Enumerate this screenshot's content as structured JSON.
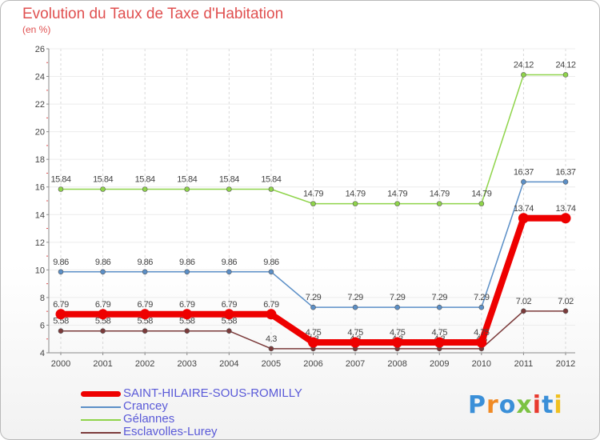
{
  "title": "Evolution du Taux de Taxe d'Habitation",
  "unit_label": "(en %)",
  "logo": {
    "text": "Proxiti",
    "colors": [
      "#3a8fd8",
      "#f08a24",
      "#3a8fd8",
      "#7cc243",
      "#e83a2f",
      "#3a8fd8",
      "#f0c020"
    ]
  },
  "chart_data": {
    "type": "line",
    "title": "Evolution du Taux de Taxe d'Habitation",
    "ylabel": "(en %)",
    "xlabel": "",
    "ylim": [
      4,
      26
    ],
    "yticks": [
      4,
      6,
      8,
      10,
      12,
      14,
      16,
      18,
      20,
      22,
      24,
      26
    ],
    "grid": true,
    "legend_position": "bottom-left",
    "x": [
      "2000",
      "2001",
      "2002",
      "2003",
      "2004",
      "2005",
      "2006",
      "2007",
      "2008",
      "2009",
      "2010",
      "2011",
      "2012"
    ],
    "series": [
      {
        "name": "Esclavolles-Lurey",
        "color": "#7b3a3a",
        "values": [
          5.58,
          5.58,
          5.58,
          5.58,
          5.58,
          4.3,
          4.3,
          4.3,
          4.3,
          4.3,
          4.3,
          7.02,
          7.02
        ],
        "labels": [
          "5.58",
          "5.58",
          "5.58",
          "5.58",
          "5.58",
          "4.3",
          "4.3",
          "4.3",
          "4.3",
          "4.3",
          "4.3",
          "7.02",
          "7.02"
        ]
      },
      {
        "name": "Gélannes",
        "color": "#8fd44a",
        "values": [
          15.84,
          15.84,
          15.84,
          15.84,
          15.84,
          15.84,
          14.79,
          14.79,
          14.79,
          14.79,
          14.79,
          24.12,
          24.12
        ],
        "labels": [
          "15.84",
          "15.84",
          "15.84",
          "15.84",
          "15.84",
          "15.84",
          "14.79",
          "14.79",
          "14.79",
          "14.79",
          "14.79",
          "24.12",
          "24.12"
        ]
      },
      {
        "name": "Crancey",
        "color": "#5b8fc7",
        "values": [
          9.86,
          9.86,
          9.86,
          9.86,
          9.86,
          9.86,
          7.29,
          7.29,
          7.29,
          7.29,
          7.29,
          16.37,
          16.37
        ],
        "labels": [
          "9.86",
          "9.86",
          "9.86",
          "9.86",
          "9.86",
          "9.86",
          "7.29",
          "7.29",
          "7.29",
          "7.29",
          "7.29",
          "16.37",
          "16.37"
        ]
      },
      {
        "name": "SAINT-HILAIRE-SOUS-ROMILLY",
        "color": "#ee0000",
        "values": [
          6.79,
          6.79,
          6.79,
          6.79,
          6.79,
          6.79,
          4.75,
          4.75,
          4.75,
          4.75,
          4.75,
          13.74,
          13.74
        ],
        "labels": [
          "6.79",
          "6.79",
          "6.79",
          "6.79",
          "6.79",
          "6.79",
          "4.75",
          "4.75",
          "4.75",
          "4.75",
          "4.75",
          "13.74",
          "13.74"
        ]
      }
    ],
    "legend": [
      "SAINT-HILAIRE-SOUS-ROMILLY",
      "Crancey",
      "Gélannes",
      "Esclavolles-Lurey"
    ]
  }
}
